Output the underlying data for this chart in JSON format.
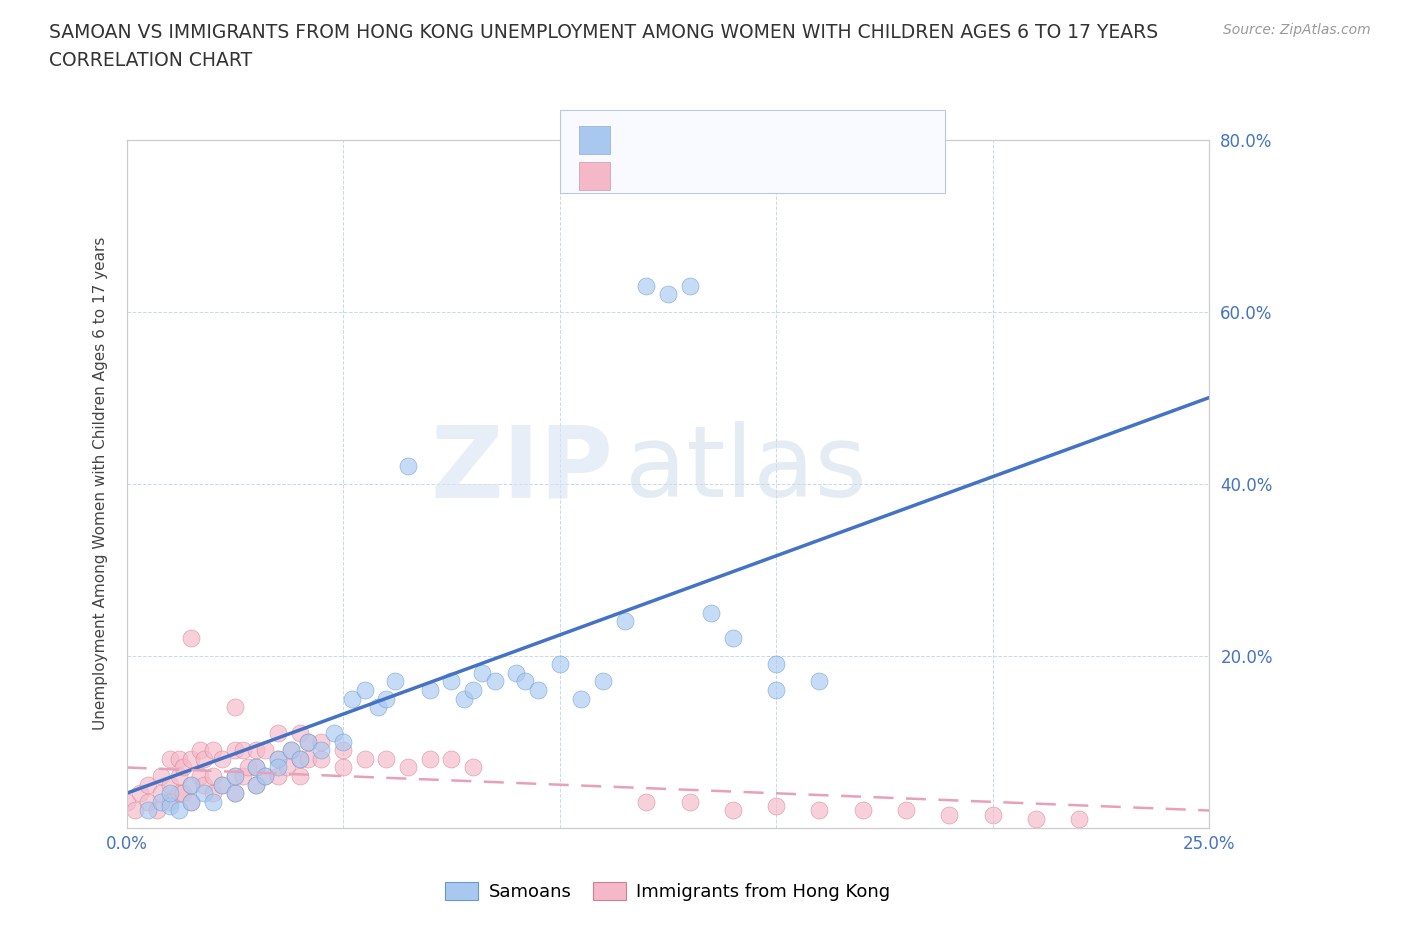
{
  "title_line1": "SAMOAN VS IMMIGRANTS FROM HONG KONG UNEMPLOYMENT AMONG WOMEN WITH CHILDREN AGES 6 TO 17 YEARS",
  "title_line2": "CORRELATION CHART",
  "source_text": "Source: ZipAtlas.com",
  "ylabel": "Unemployment Among Women with Children Ages 6 to 17 years",
  "xlim": [
    0.0,
    0.25
  ],
  "ylim": [
    0.0,
    0.8
  ],
  "xticks": [
    0.0,
    0.05,
    0.1,
    0.15,
    0.2,
    0.25
  ],
  "yticks": [
    0.0,
    0.2,
    0.4,
    0.6,
    0.8
  ],
  "xticklabels": [
    "0.0%",
    "",
    "",
    "",
    "",
    "25.0%"
  ],
  "yticklabels_right": [
    "80.0%",
    "60.0%",
    "40.0%",
    "20.0%",
    ""
  ],
  "watermark_zip": "ZIP",
  "watermark_atlas": "atlas",
  "samoans_color": "#a8c8f0",
  "samoans_edge_color": "#6699cc",
  "hk_color": "#f5b8c8",
  "hk_edge_color": "#d08090",
  "samoans_line_color": "#4472c4",
  "hk_line_color": "#e8a0b8",
  "title_color": "#333333",
  "axis_label_color": "#4472c4",
  "grid_color": "#c8d8f0",
  "background_color": "#ffffff",
  "samoans_x": [
    0.005,
    0.008,
    0.01,
    0.01,
    0.012,
    0.015,
    0.015,
    0.018,
    0.02,
    0.022,
    0.025,
    0.025,
    0.03,
    0.03,
    0.032,
    0.035,
    0.035,
    0.038,
    0.04,
    0.042,
    0.045,
    0.048,
    0.05,
    0.052,
    0.055,
    0.058,
    0.06,
    0.062,
    0.065,
    0.07,
    0.075,
    0.078,
    0.08,
    0.082,
    0.085,
    0.09,
    0.092,
    0.095,
    0.1,
    0.105,
    0.11,
    0.115,
    0.12,
    0.125,
    0.13,
    0.135,
    0.14,
    0.15,
    0.15,
    0.16
  ],
  "samoans_y": [
    0.02,
    0.03,
    0.025,
    0.04,
    0.02,
    0.03,
    0.05,
    0.04,
    0.03,
    0.05,
    0.04,
    0.06,
    0.05,
    0.07,
    0.06,
    0.08,
    0.07,
    0.09,
    0.08,
    0.1,
    0.09,
    0.11,
    0.1,
    0.15,
    0.16,
    0.14,
    0.15,
    0.17,
    0.42,
    0.16,
    0.17,
    0.15,
    0.16,
    0.18,
    0.17,
    0.18,
    0.17,
    0.16,
    0.19,
    0.15,
    0.17,
    0.24,
    0.63,
    0.62,
    0.63,
    0.25,
    0.22,
    0.16,
    0.19,
    0.17
  ],
  "hk_x": [
    0.0,
    0.002,
    0.003,
    0.005,
    0.005,
    0.007,
    0.008,
    0.008,
    0.01,
    0.01,
    0.01,
    0.012,
    0.012,
    0.012,
    0.013,
    0.013,
    0.015,
    0.015,
    0.015,
    0.015,
    0.017,
    0.017,
    0.018,
    0.018,
    0.02,
    0.02,
    0.02,
    0.022,
    0.022,
    0.025,
    0.025,
    0.025,
    0.025,
    0.027,
    0.027,
    0.028,
    0.03,
    0.03,
    0.03,
    0.032,
    0.032,
    0.035,
    0.035,
    0.035,
    0.037,
    0.038,
    0.04,
    0.04,
    0.04,
    0.042,
    0.042,
    0.045,
    0.045,
    0.05,
    0.05,
    0.055,
    0.06,
    0.065,
    0.07,
    0.075,
    0.08,
    0.12,
    0.13,
    0.14,
    0.15,
    0.16,
    0.17,
    0.18,
    0.19,
    0.2,
    0.21,
    0.22
  ],
  "hk_y": [
    0.03,
    0.02,
    0.04,
    0.03,
    0.05,
    0.02,
    0.04,
    0.06,
    0.03,
    0.05,
    0.08,
    0.04,
    0.06,
    0.08,
    0.04,
    0.07,
    0.03,
    0.05,
    0.08,
    0.22,
    0.06,
    0.09,
    0.05,
    0.08,
    0.04,
    0.06,
    0.09,
    0.05,
    0.08,
    0.04,
    0.06,
    0.09,
    0.14,
    0.06,
    0.09,
    0.07,
    0.05,
    0.07,
    0.09,
    0.06,
    0.09,
    0.06,
    0.08,
    0.11,
    0.07,
    0.09,
    0.06,
    0.08,
    0.11,
    0.08,
    0.1,
    0.08,
    0.1,
    0.07,
    0.09,
    0.08,
    0.08,
    0.07,
    0.08,
    0.08,
    0.07,
    0.03,
    0.03,
    0.02,
    0.025,
    0.02,
    0.02,
    0.02,
    0.015,
    0.015,
    0.01,
    0.01
  ],
  "blue_trend_x": [
    0.0,
    0.25
  ],
  "blue_trend_y": [
    0.04,
    0.5
  ],
  "pink_trend_x": [
    0.0,
    0.25
  ],
  "pink_trend_y": [
    0.07,
    0.02
  ],
  "legend_box_color": "#f0f4fc",
  "legend_border_color": "#c0c8d8"
}
